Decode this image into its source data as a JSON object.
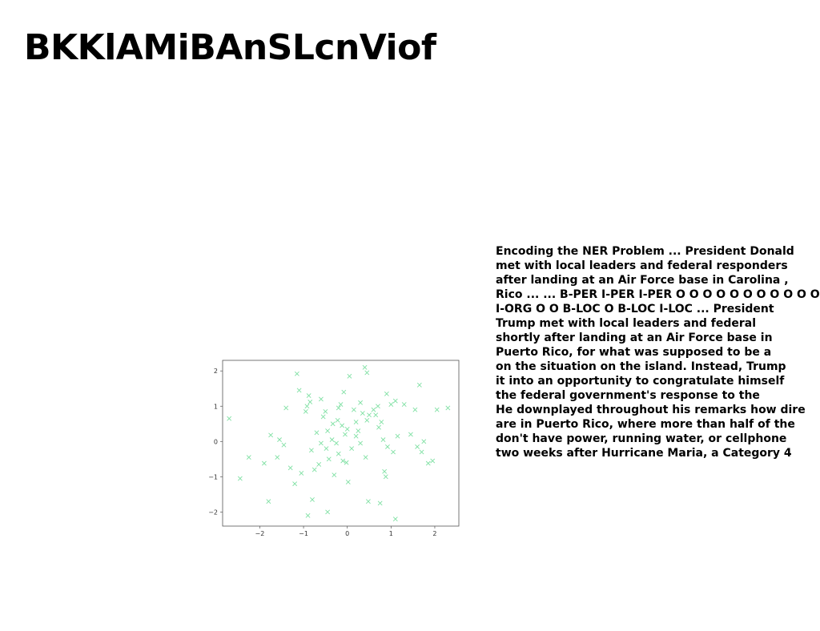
{
  "page": {
    "title": "BKKlAMiBAnSLcnViof",
    "text_lines": [
      "Encoding the NER Problem ... President Donald",
      "met with local leaders and federal responders",
      "after landing at an Air Force base in Carolina ,",
      "Rico ... ... B-PER I-PER I-PER O O O O O O O O O O O O O",
      "I-ORG O O B-LOC O B-LOC I-LOC ... President",
      "Trump met with local leaders and federal",
      "shortly after landing at an Air Force base in",
      "Puerto Rico, for what was supposed to be a",
      "on the situation on the island. Instead, Trump",
      "it into an opportunity to congratulate himself",
      "the federal government's response to the",
      "He downplayed throughout his remarks how dire",
      "are in Puerto Rico, where more than half of the",
      "don't have power, running water, or cellphone",
      "two weeks after Hurricane Maria, a Category 4"
    ]
  },
  "chart_data": {
    "type": "scatter",
    "marker": "x",
    "color": "#7fe0a3",
    "xlim": [
      -2.85,
      2.55
    ],
    "ylim": [
      -2.4,
      2.3
    ],
    "xticks": [
      -2,
      -1,
      0,
      1,
      2
    ],
    "yticks": [
      -2,
      -1,
      0,
      1,
      2
    ],
    "xticklabels": [
      "−2",
      "−1",
      "0",
      "1",
      "2"
    ],
    "yticklabels": [
      "−2",
      "−1",
      "0",
      "1",
      "2"
    ],
    "grid": false,
    "points": [
      [
        -2.7,
        0.65
      ],
      [
        -2.45,
        -1.05
      ],
      [
        -2.25,
        -0.45
      ],
      [
        -1.9,
        -0.62
      ],
      [
        -1.75,
        0.18
      ],
      [
        -1.8,
        -1.7
      ],
      [
        -1.6,
        -0.45
      ],
      [
        -1.55,
        0.05
      ],
      [
        -1.45,
        -0.1
      ],
      [
        -1.3,
        -0.75
      ],
      [
        -1.15,
        1.92
      ],
      [
        -1.1,
        1.45
      ],
      [
        -1.2,
        -1.2
      ],
      [
        -1.05,
        -0.9
      ],
      [
        -0.95,
        0.85
      ],
      [
        -0.92,
        1.0
      ],
      [
        -0.88,
        1.3
      ],
      [
        -0.85,
        1.12
      ],
      [
        -0.82,
        -0.25
      ],
      [
        -0.8,
        -1.65
      ],
      [
        -0.9,
        -2.1
      ],
      [
        -0.75,
        -0.8
      ],
      [
        -0.7,
        0.25
      ],
      [
        -0.65,
        -0.65
      ],
      [
        -0.6,
        1.2
      ],
      [
        -0.55,
        0.7
      ],
      [
        -0.5,
        0.85
      ],
      [
        -0.48,
        -0.2
      ],
      [
        -0.45,
        0.3
      ],
      [
        -0.42,
        -0.5
      ],
      [
        -0.45,
        -2.0
      ],
      [
        -0.35,
        0.05
      ],
      [
        -0.33,
        0.5
      ],
      [
        -0.3,
        -0.95
      ],
      [
        -0.25,
        -0.05
      ],
      [
        -0.22,
        0.6
      ],
      [
        -0.2,
        0.95
      ],
      [
        -0.15,
        1.05
      ],
      [
        -0.12,
        0.45
      ],
      [
        -0.1,
        -0.55
      ],
      [
        -0.08,
        1.4
      ],
      [
        -0.05,
        0.2
      ],
      [
        -0.02,
        -0.6
      ],
      [
        0.0,
        0.35
      ],
      [
        0.05,
        1.85
      ],
      [
        0.02,
        -1.15
      ],
      [
        0.1,
        -0.2
      ],
      [
        0.15,
        0.9
      ],
      [
        0.2,
        0.55
      ],
      [
        0.2,
        0.15
      ],
      [
        0.25,
        0.3
      ],
      [
        0.3,
        1.1
      ],
      [
        0.35,
        0.8
      ],
      [
        0.4,
        2.1
      ],
      [
        0.45,
        1.95
      ],
      [
        0.45,
        0.6
      ],
      [
        0.42,
        -0.45
      ],
      [
        0.5,
        0.75
      ],
      [
        0.48,
        -1.7
      ],
      [
        0.6,
        0.9
      ],
      [
        0.65,
        0.75
      ],
      [
        0.7,
        1.0
      ],
      [
        0.72,
        0.4
      ],
      [
        0.75,
        -1.75
      ],
      [
        0.78,
        0.55
      ],
      [
        0.82,
        0.05
      ],
      [
        0.85,
        -0.85
      ],
      [
        0.88,
        -1.0
      ],
      [
        0.9,
        1.35
      ],
      [
        0.92,
        -0.15
      ],
      [
        1.0,
        1.05
      ],
      [
        1.05,
        -0.3
      ],
      [
        1.1,
        1.15
      ],
      [
        1.15,
        0.15
      ],
      [
        1.1,
        -2.2
      ],
      [
        1.3,
        1.05
      ],
      [
        1.45,
        0.2
      ],
      [
        1.55,
        0.9
      ],
      [
        1.6,
        -0.15
      ],
      [
        1.65,
        1.6
      ],
      [
        1.7,
        -0.3
      ],
      [
        1.75,
        0.0
      ],
      [
        1.85,
        -0.62
      ],
      [
        1.95,
        -0.55
      ],
      [
        2.05,
        0.9
      ],
      [
        2.3,
        0.95
      ],
      [
        -0.2,
        -0.35
      ],
      [
        0.3,
        -0.05
      ],
      [
        -1.4,
        0.95
      ],
      [
        -0.6,
        -0.05
      ]
    ]
  }
}
